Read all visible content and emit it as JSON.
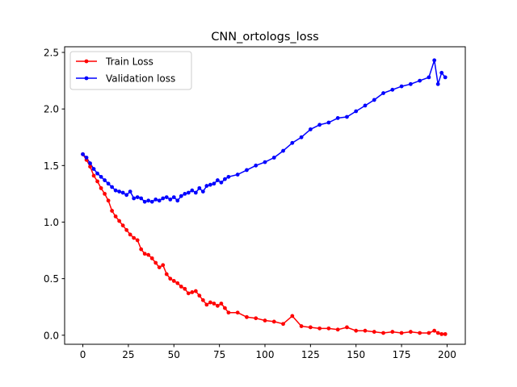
{
  "chart_data": {
    "type": "line",
    "title": "CNN_ortologs_loss",
    "xlabel": "",
    "ylabel": "",
    "xlim": [
      -10,
      210
    ],
    "ylim": [
      -0.08,
      2.55
    ],
    "xticks": [
      0,
      25,
      50,
      75,
      100,
      125,
      150,
      175,
      200
    ],
    "yticks": [
      0.0,
      0.5,
      1.0,
      1.5,
      2.0,
      2.5
    ],
    "xtick_labels": [
      "0",
      "25",
      "50",
      "75",
      "100",
      "125",
      "150",
      "175",
      "200"
    ],
    "ytick_labels": [
      "0.0",
      "0.5",
      "1.0",
      "1.5",
      "2.0",
      "2.5"
    ],
    "grid": false,
    "legend": "upper-left",
    "series": [
      {
        "name": "Train Loss",
        "color": "#ff0000",
        "x": [
          0,
          2,
          4,
          6,
          8,
          10,
          12,
          14,
          16,
          18,
          20,
          22,
          24,
          26,
          28,
          30,
          32,
          34,
          36,
          38,
          40,
          42,
          44,
          46,
          48,
          50,
          52,
          54,
          56,
          58,
          60,
          62,
          64,
          66,
          68,
          70,
          72,
          74,
          76,
          78,
          80,
          85,
          90,
          95,
          100,
          105,
          110,
          115,
          120,
          125,
          130,
          135,
          140,
          145,
          150,
          155,
          160,
          165,
          170,
          175,
          180,
          185,
          190,
          193,
          195,
          197,
          199
        ],
        "values": [
          1.6,
          1.55,
          1.49,
          1.41,
          1.36,
          1.3,
          1.25,
          1.19,
          1.1,
          1.05,
          1.01,
          0.97,
          0.93,
          0.89,
          0.86,
          0.84,
          0.76,
          0.72,
          0.71,
          0.68,
          0.64,
          0.6,
          0.62,
          0.54,
          0.5,
          0.48,
          0.46,
          0.43,
          0.41,
          0.37,
          0.38,
          0.39,
          0.35,
          0.31,
          0.27,
          0.29,
          0.28,
          0.26,
          0.28,
          0.24,
          0.2,
          0.2,
          0.16,
          0.15,
          0.13,
          0.12,
          0.1,
          0.17,
          0.08,
          0.07,
          0.06,
          0.06,
          0.05,
          0.07,
          0.04,
          0.04,
          0.03,
          0.02,
          0.03,
          0.02,
          0.03,
          0.02,
          0.02,
          0.04,
          0.02,
          0.01,
          0.01
        ]
      },
      {
        "name": "Validation loss",
        "color": "#0000ff",
        "x": [
          0,
          2,
          4,
          6,
          8,
          10,
          12,
          14,
          16,
          18,
          20,
          22,
          24,
          26,
          28,
          30,
          32,
          34,
          36,
          38,
          40,
          42,
          44,
          46,
          48,
          50,
          52,
          54,
          56,
          58,
          60,
          62,
          64,
          66,
          68,
          70,
          72,
          74,
          76,
          78,
          80,
          85,
          90,
          95,
          100,
          105,
          110,
          115,
          120,
          125,
          130,
          135,
          140,
          145,
          150,
          155,
          160,
          165,
          170,
          175,
          180,
          185,
          190,
          193,
          195,
          197,
          199
        ],
        "values": [
          1.6,
          1.57,
          1.52,
          1.47,
          1.43,
          1.4,
          1.37,
          1.34,
          1.31,
          1.28,
          1.27,
          1.26,
          1.24,
          1.27,
          1.21,
          1.22,
          1.21,
          1.18,
          1.19,
          1.18,
          1.2,
          1.19,
          1.21,
          1.22,
          1.2,
          1.22,
          1.19,
          1.23,
          1.25,
          1.26,
          1.28,
          1.26,
          1.3,
          1.27,
          1.32,
          1.33,
          1.34,
          1.37,
          1.35,
          1.38,
          1.4,
          1.42,
          1.46,
          1.5,
          1.53,
          1.57,
          1.63,
          1.7,
          1.75,
          1.82,
          1.86,
          1.88,
          1.92,
          1.93,
          1.98,
          2.03,
          2.08,
          2.14,
          2.17,
          2.2,
          2.22,
          2.25,
          2.28,
          2.43,
          2.22,
          2.32,
          2.28
        ]
      }
    ]
  }
}
